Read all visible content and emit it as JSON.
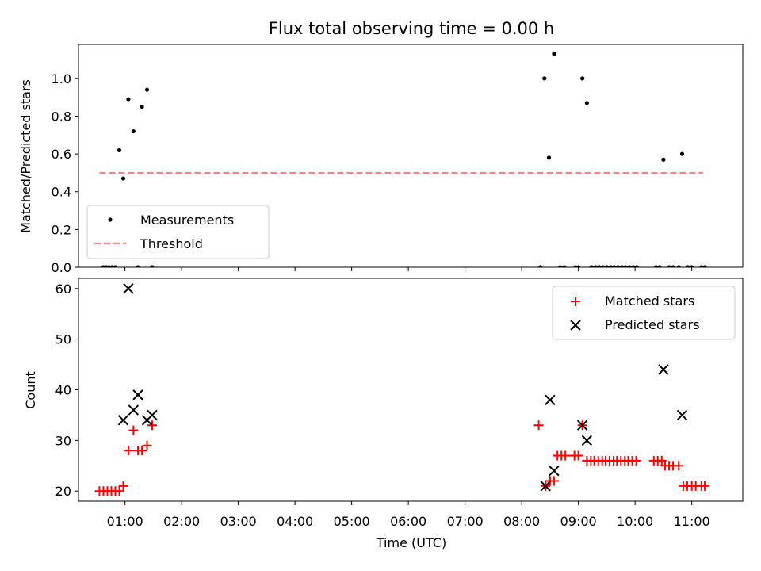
{
  "chart_data": [
    {
      "type": "scatter",
      "title": "Flux total observing time = 0.00 h",
      "xlabel": "",
      "ylabel": "Matched/Predicted stars",
      "xlim": [
        0.18,
        11.9
      ],
      "ylim": [
        0.0,
        1.18
      ],
      "yticks": [
        0.0,
        0.2,
        0.4,
        0.6,
        0.8,
        1.0
      ],
      "ytick_labels": [
        "0.0",
        "0.2",
        "0.4",
        "0.6",
        "0.8",
        "1.0"
      ],
      "legend_position": "lower-left",
      "series": [
        {
          "name": "Measurements",
          "marker": "dot",
          "color": "#000000",
          "x": [
            0.62,
            0.67,
            0.72,
            0.77,
            0.83,
            0.9,
            0.97,
            1.06,
            1.15,
            1.23,
            1.3,
            1.39,
            1.48,
            8.33,
            8.4,
            8.48,
            8.68,
            8.75,
            8.95,
            9.0,
            9.07,
            9.15,
            9.23,
            9.3,
            9.37,
            9.43,
            9.5,
            9.57,
            9.63,
            9.7,
            9.77,
            9.83,
            9.9,
            9.97,
            10.03,
            10.37,
            10.43,
            10.5,
            10.6,
            10.67,
            10.77,
            10.83,
            10.93,
            11.0,
            11.17,
            11.23
          ],
          "y": [
            0.0,
            0.0,
            0.0,
            0.0,
            0.0,
            0.62,
            0.47,
            0.89,
            0.72,
            0.0,
            0.85,
            0.94,
            0.0,
            0.0,
            1.0,
            0.58,
            0.0,
            0.0,
            0.0,
            0.0,
            1.0,
            0.87,
            0.0,
            0.0,
            0.0,
            0.0,
            0.0,
            0.0,
            0.0,
            0.0,
            0.0,
            0.0,
            0.0,
            0.0,
            0.0,
            0.0,
            0.0,
            0.57,
            0.0,
            0.0,
            0.0,
            0.6,
            0.0,
            0.0,
            0.0,
            0.0
          ]
        },
        {
          "name": "Measurements",
          "marker": "dot",
          "color": "#000000",
          "x": [
            8.57
          ],
          "y": [
            1.13
          ],
          "legend": false
        },
        {
          "name": "Threshold",
          "line": "dashed",
          "color": "#ff7f7f",
          "x": [
            0.55,
            11.2
          ],
          "y": [
            0.5,
            0.5
          ]
        }
      ]
    },
    {
      "type": "scatter",
      "title": "",
      "xlabel": "Time (UTC)",
      "ylabel": "Count",
      "xlim": [
        0.18,
        11.9
      ],
      "ylim": [
        18,
        62
      ],
      "yticks": [
        20,
        30,
        40,
        50,
        60
      ],
      "ytick_labels": [
        "20",
        "30",
        "40",
        "50",
        "60"
      ],
      "xticks": [
        1,
        2,
        3,
        4,
        5,
        6,
        7,
        8,
        9,
        10,
        11
      ],
      "xtick_labels": [
        "01:00",
        "02:00",
        "03:00",
        "04:00",
        "05:00",
        "06:00",
        "07:00",
        "08:00",
        "09:00",
        "10:00",
        "11:00"
      ],
      "legend_position": "upper-right",
      "series": [
        {
          "name": "Matched stars",
          "marker": "plus",
          "color": "#ff0000",
          "x": [
            0.55,
            0.62,
            0.69,
            0.76,
            0.83,
            0.9,
            0.97,
            1.06,
            1.15,
            1.23,
            1.3,
            1.39,
            1.48,
            8.3,
            8.42,
            8.5,
            8.57,
            8.63,
            8.7,
            8.77,
            8.93,
            9.0,
            9.07,
            9.15,
            9.22,
            9.28,
            9.35,
            9.42,
            9.48,
            9.55,
            9.62,
            9.68,
            9.75,
            9.82,
            9.88,
            9.95,
            10.02,
            10.33,
            10.4,
            10.47,
            10.53,
            10.6,
            10.67,
            10.77,
            10.85,
            10.92,
            11.0,
            11.07,
            11.17,
            11.23
          ],
          "y": [
            20,
            20,
            20,
            20,
            20,
            20,
            21,
            28,
            32,
            28,
            28,
            29,
            33,
            33,
            21,
            22,
            22,
            27,
            27,
            27,
            27,
            27,
            33,
            26,
            26,
            26,
            26,
            26,
            26,
            26,
            26,
            26,
            26,
            26,
            26,
            26,
            26,
            26,
            26,
            26,
            25,
            25,
            25,
            25,
            21,
            21,
            21,
            21,
            21,
            21
          ]
        },
        {
          "name": "Predicted stars",
          "marker": "x",
          "color": "#000000",
          "x": [
            0.97,
            1.06,
            1.15,
            1.23,
            1.39,
            1.48,
            8.42,
            8.5,
            8.57,
            9.07,
            9.15,
            10.5,
            10.83
          ],
          "y": [
            34,
            60,
            36,
            39,
            34,
            35,
            21,
            38,
            24,
            33,
            30,
            44,
            35
          ]
        }
      ]
    }
  ]
}
